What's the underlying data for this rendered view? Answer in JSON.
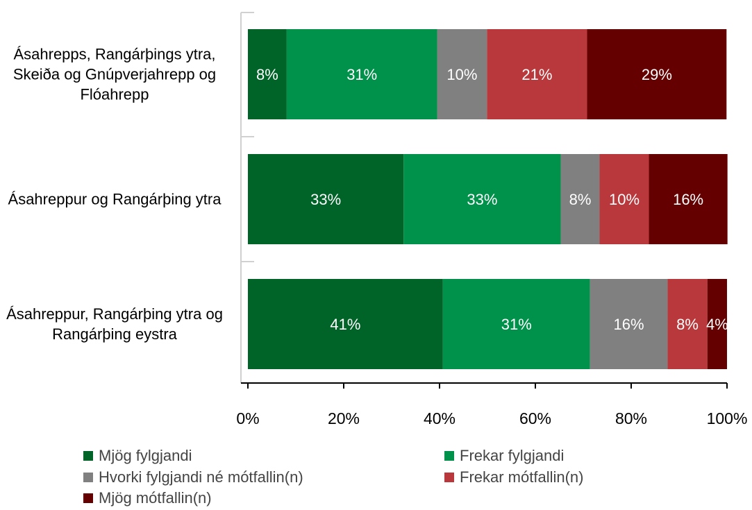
{
  "chart_data": {
    "type": "stacked_bar_horizontal",
    "categories": [
      "Ásahrepps, Rangárþings ytra, Skeiða og Gnúpverjahrepp og Flóahrepp",
      "Ásahreppur og Rangárþing ytra",
      "Ásahreppur, Rangárþing ytra og Rangárþing eystra"
    ],
    "series": [
      {
        "name": "Mjög fylgjandi",
        "color": "#006428",
        "values": [
          8.1,
          32.5,
          40.7
        ],
        "value_labels": [
          "8%",
          "33%",
          "41%"
        ]
      },
      {
        "name": "Frekar fylgjandi",
        "color": "#00914a",
        "values": [
          31.4,
          32.8,
          30.7
        ],
        "value_labels": [
          "31%",
          "33%",
          "31%"
        ]
      },
      {
        "name": "Hvorki fylgjandi né mótfallin(n)",
        "color": "#808080",
        "values": [
          10.4,
          8.1,
          16.2
        ],
        "value_labels": [
          "10%",
          "8%",
          "16%"
        ]
      },
      {
        "name": "Frekar mótfallin(n)",
        "color": "#b8383b",
        "values": [
          20.9,
          10.3,
          8.3
        ],
        "value_labels": [
          "21%",
          "10%",
          "8%"
        ]
      },
      {
        "name": "Mjög mótfallin(n)",
        "color": "#640000",
        "values": [
          29.1,
          16.4,
          4.1
        ],
        "value_labels": [
          "29%",
          "16%",
          "4%"
        ]
      }
    ],
    "xlim": [
      0,
      100
    ],
    "xticks": [
      {
        "value": 0,
        "label": "0%"
      },
      {
        "value": 20,
        "label": "20%"
      },
      {
        "value": 40,
        "label": "40%"
      },
      {
        "value": 60,
        "label": "60%"
      },
      {
        "value": 80,
        "label": "80%"
      },
      {
        "value": 100,
        "label": "100%"
      }
    ]
  }
}
